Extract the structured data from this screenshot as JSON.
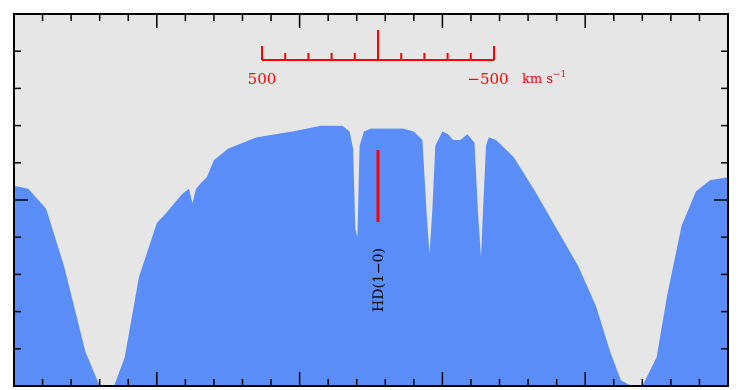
{
  "colors": {
    "background": "#e6e6e6",
    "spectrum": "#5a8df7",
    "frame": "#000000",
    "marker": "#ff0000",
    "label": "#000000"
  },
  "chart_data": {
    "type": "area",
    "title": "",
    "xlabel": "",
    "ylabel": "",
    "xlim": [
      0,
      1
    ],
    "ylim": [
      0,
      1
    ],
    "grid": false,
    "series": [
      {
        "name": "",
        "x": [
          0,
          0.02,
          0.045,
          0.07,
          0.1,
          0.12,
          0.14,
          0.155,
          0.175,
          0.2,
          0.215,
          0.235,
          0.245,
          0.25,
          0.255,
          0.262,
          0.27,
          0.28,
          0.3,
          0.34,
          0.39,
          0.43,
          0.46,
          0.47,
          0.475,
          0.478,
          0.481,
          0.484,
          0.49,
          0.5,
          0.52,
          0.545,
          0.56,
          0.572,
          0.578,
          0.582,
          0.586,
          0.59,
          0.6,
          0.608,
          0.615,
          0.625,
          0.635,
          0.645,
          0.65,
          0.654,
          0.657,
          0.661,
          0.665,
          0.675,
          0.7,
          0.73,
          0.76,
          0.79,
          0.815,
          0.835,
          0.85,
          0.865,
          0.88,
          0.9,
          0.915,
          0.935,
          0.955,
          0.975,
          1.0
        ],
        "values": [
          0.7,
          0.69,
          0.62,
          0.42,
          0.12,
          0.0,
          0.0,
          0.1,
          0.38,
          0.57,
          0.61,
          0.67,
          0.69,
          0.64,
          0.69,
          0.71,
          0.73,
          0.79,
          0.83,
          0.87,
          0.89,
          0.91,
          0.91,
          0.89,
          0.83,
          0.55,
          0.52,
          0.84,
          0.89,
          0.9,
          0.9,
          0.9,
          0.89,
          0.86,
          0.6,
          0.46,
          0.62,
          0.84,
          0.89,
          0.88,
          0.86,
          0.86,
          0.88,
          0.85,
          0.6,
          0.45,
          0.62,
          0.84,
          0.87,
          0.86,
          0.8,
          0.68,
          0.55,
          0.42,
          0.28,
          0.12,
          0.02,
          0.0,
          0.0,
          0.1,
          0.32,
          0.56,
          0.68,
          0.72,
          0.73
        ]
      }
    ],
    "velocity_scale": {
      "left_label": "500",
      "right_label": "−500",
      "unit": "km s",
      "unit_exponent": "−1"
    },
    "line_marker": {
      "label": "HD(1−0)"
    }
  }
}
